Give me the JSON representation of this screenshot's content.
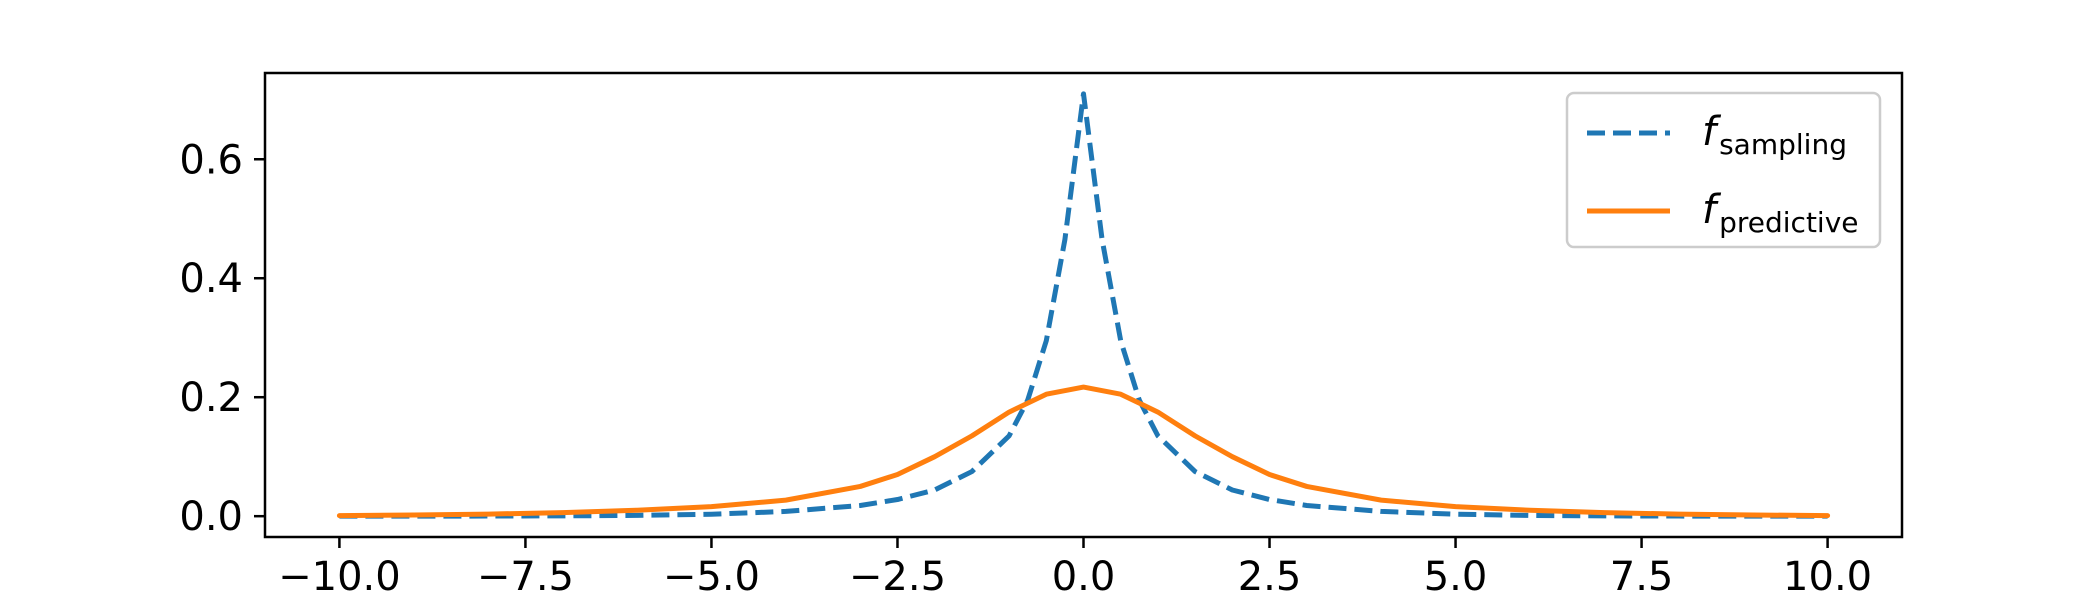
{
  "chart_data": {
    "type": "line",
    "xlim": [
      -11.0,
      11.0
    ],
    "ylim": [
      -0.035,
      0.745
    ],
    "xticks": [
      -10.0,
      -7.5,
      -5.0,
      -2.5,
      0.0,
      2.5,
      5.0,
      7.5,
      10.0
    ],
    "xtick_labels": [
      "−10.0",
      "−7.5",
      "−5.0",
      "−2.5",
      "0.0",
      "2.5",
      "5.0",
      "7.5",
      "10.0"
    ],
    "yticks": [
      0.0,
      0.2,
      0.4,
      0.6
    ],
    "ytick_labels": [
      "0.0",
      "0.2",
      "0.4",
      "0.6"
    ],
    "grid": false,
    "legend_position": "top-right",
    "series": [
      {
        "name": "f_sampling",
        "legend_base": "f",
        "legend_sub": "sampling",
        "color": "#1f77b4",
        "dash": "dashed",
        "x": [
          -10,
          -9,
          -8,
          -7,
          -6,
          -5,
          -4,
          -3,
          -2.5,
          -2,
          -1.5,
          -1,
          -0.75,
          -0.5,
          -0.25,
          0,
          0.25,
          0.5,
          0.75,
          1,
          1.5,
          2,
          2.5,
          3,
          4,
          5,
          6,
          7,
          8,
          9,
          10
        ],
        "y": [
          0.0,
          0.0001,
          0.0002,
          0.0005,
          0.0013,
          0.0033,
          0.008,
          0.018,
          0.028,
          0.044,
          0.075,
          0.135,
          0.195,
          0.295,
          0.465,
          0.71,
          0.465,
          0.295,
          0.195,
          0.135,
          0.075,
          0.044,
          0.028,
          0.018,
          0.008,
          0.0033,
          0.0013,
          0.0005,
          0.0002,
          0.0001,
          0.0
        ]
      },
      {
        "name": "f_predictive",
        "legend_base": "f",
        "legend_sub": "predictive",
        "color": "#ff7f0e",
        "dash": "solid",
        "x": [
          -10,
          -9,
          -8,
          -7,
          -6,
          -5,
          -4,
          -3,
          -2.5,
          -2,
          -1.5,
          -1,
          -0.5,
          0,
          0.5,
          1,
          1.5,
          2,
          2.5,
          3,
          4,
          5,
          6,
          7,
          8,
          9,
          10
        ],
        "y": [
          0.001,
          0.002,
          0.0035,
          0.006,
          0.01,
          0.016,
          0.027,
          0.05,
          0.07,
          0.1,
          0.135,
          0.175,
          0.205,
          0.217,
          0.205,
          0.175,
          0.135,
          0.1,
          0.07,
          0.05,
          0.027,
          0.016,
          0.01,
          0.006,
          0.0035,
          0.002,
          0.001
        ]
      }
    ]
  }
}
